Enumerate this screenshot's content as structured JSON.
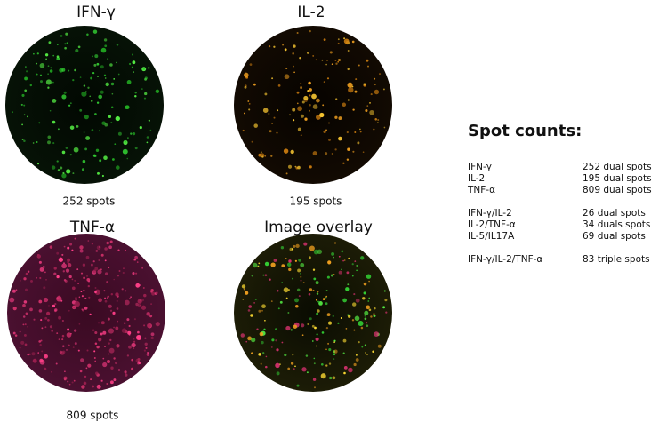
{
  "panels": [
    {
      "title": "IFN-γ",
      "caption": "252 spots"
    },
    {
      "title": "IL-2",
      "caption": "195 spots"
    },
    {
      "title": "TNF-α",
      "caption": "809 spots"
    },
    {
      "title": "Image overlay"
    }
  ],
  "spot_counts": {
    "title": "Spot counts:",
    "groups": [
      [
        [
          "IFN-γ",
          "252 dual spots"
        ],
        [
          "IL-2",
          "195 dual spots"
        ],
        [
          "TNF-α",
          "809 dual spots"
        ]
      ],
      [
        [
          "IFN-γ/IL-2",
          "26 dual spots"
        ],
        [
          "IL-2/TNF-α",
          "34 duals spots"
        ],
        [
          "IL-5/IL17A",
          "69 dual spots"
        ]
      ],
      [
        [
          "IFN-γ/IL-2/TNF-α",
          "83 triple spots"
        ]
      ]
    ]
  }
}
